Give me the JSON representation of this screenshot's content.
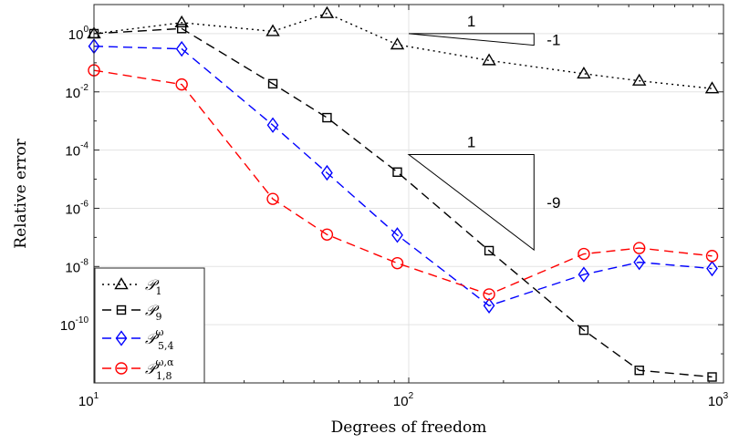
{
  "chart_data": {
    "type": "line",
    "xlabel": "Degrees of freedom",
    "ylabel": "Relative error",
    "xscale": "log",
    "yscale": "log",
    "xlim": [
      10,
      1000
    ],
    "ylim": [
      1e-12,
      10
    ],
    "grid": true,
    "legend_position": "bottom-left",
    "x_ticks": [
      {
        "base": "10",
        "exp": "1"
      },
      {
        "base": "10",
        "exp": "2"
      },
      {
        "base": "10",
        "exp": "3"
      }
    ],
    "y_ticks": [
      {
        "value": 1,
        "base": "10",
        "exp": "0"
      },
      {
        "value": 0.01,
        "base": "10",
        "exp": "-2"
      },
      {
        "value": 0.0001,
        "base": "10",
        "exp": "-4"
      },
      {
        "value": 1e-06,
        "base": "10",
        "exp": "-6"
      },
      {
        "value": 1e-08,
        "base": "10",
        "exp": "-8"
      },
      {
        "value": 1e-10,
        "base": "10",
        "exp": "-10"
      }
    ],
    "series": [
      {
        "name": "P_1",
        "legend_main": "𝒫",
        "legend_sub": "1",
        "legend_sup": "",
        "color": "#000000",
        "dash": "2,4",
        "marker": "triangle",
        "points": [
          [
            10,
            1.0
          ],
          [
            19,
            2.4
          ],
          [
            37,
            1.2
          ],
          [
            55,
            5.0
          ],
          [
            92,
            0.42
          ],
          [
            180,
            0.12
          ],
          [
            360,
            0.042
          ],
          [
            540,
            0.024
          ],
          [
            920,
            0.013
          ]
        ]
      },
      {
        "name": "P_9",
        "legend_main": "𝒫",
        "legend_sub": "9",
        "legend_sup": "",
        "color": "#000000",
        "dash": "10,6",
        "marker": "square",
        "points": [
          [
            10,
            1.0
          ],
          [
            19,
            1.5
          ],
          [
            37,
            0.019
          ],
          [
            55,
            0.0013
          ],
          [
            92,
            1.75e-05
          ],
          [
            180,
            3.5e-08
          ],
          [
            360,
            6.5e-11
          ],
          [
            540,
            2.7e-12
          ],
          [
            920,
            1.6e-12
          ]
        ]
      },
      {
        "name": "P_5,4^omega",
        "legend_main": "𝒫",
        "legend_sub": "5,4",
        "legend_sup": "ω",
        "color": "#0000ff",
        "dash": "10,6",
        "marker": "diamond",
        "points": [
          [
            10,
            0.37
          ],
          [
            19,
            0.3
          ],
          [
            37,
            0.00072
          ],
          [
            55,
            1.65e-05
          ],
          [
            92,
            1.2e-07
          ],
          [
            180,
            4.5e-10
          ],
          [
            360,
            5.3e-09
          ],
          [
            540,
            1.4e-08
          ],
          [
            920,
            8.5e-09
          ]
        ]
      },
      {
        "name": "P_1,8^omega,alpha",
        "legend_main": "𝒫",
        "legend_sub": "1,8",
        "legend_sup": "ω,α",
        "color": "#ff0000",
        "dash": "10,6",
        "marker": "circle",
        "points": [
          [
            10,
            0.055
          ],
          [
            19,
            0.018
          ],
          [
            37,
            2.1e-06
          ],
          [
            55,
            1.25e-07
          ],
          [
            92,
            1.3e-08
          ],
          [
            180,
            1.1e-09
          ],
          [
            360,
            2.7e-08
          ],
          [
            540,
            4.3e-08
          ],
          [
            920,
            2.3e-08
          ]
        ]
      }
    ],
    "slope_triangles": [
      {
        "run_label": "1",
        "rise_label": "-1",
        "x_start": 100,
        "x_end": 250,
        "y_start": 1.0,
        "y_end": 0.4
      },
      {
        "run_label": "1",
        "rise_label": "-9",
        "x_start": 100,
        "x_end": 250,
        "y_start": 7e-05,
        "y_end": 3.7e-08
      }
    ]
  }
}
